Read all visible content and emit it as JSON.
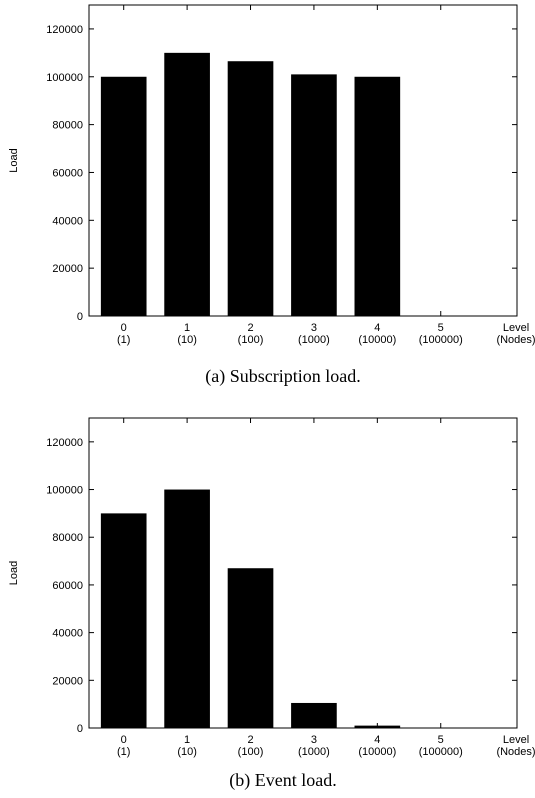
{
  "chart_data": [
    {
      "type": "bar",
      "caption": "(a) Subscription load.",
      "ylabel": "Load",
      "ylim": [
        0,
        130000
      ],
      "yticks": [
        0,
        20000,
        40000,
        60000,
        80000,
        100000,
        120000
      ],
      "categories": [
        "0",
        "1",
        "2",
        "3",
        "4",
        "5"
      ],
      "category_sublabels": [
        "(1)",
        "(10)",
        "(100)",
        "(1000)",
        "(10000)",
        "(100000)"
      ],
      "values": [
        100000,
        110000,
        106500,
        101000,
        100000,
        0
      ],
      "xlabel": "Level",
      "xlabel_sub": "(Nodes)",
      "grid": false,
      "bar_color": "#000000"
    },
    {
      "type": "bar",
      "caption": "(b) Event load.",
      "ylabel": "Load",
      "ylim": [
        0,
        130000
      ],
      "yticks": [
        0,
        20000,
        40000,
        60000,
        80000,
        100000,
        120000
      ],
      "categories": [
        "0",
        "1",
        "2",
        "3",
        "4",
        "5"
      ],
      "category_sublabels": [
        "(1)",
        "(10)",
        "(100)",
        "(1000)",
        "(10000)",
        "(100000)"
      ],
      "values": [
        90000,
        100000,
        67000,
        10500,
        1000,
        100
      ],
      "xlabel": "Level",
      "xlabel_sub": "(Nodes)",
      "grid": false,
      "bar_color": "#000000"
    }
  ]
}
